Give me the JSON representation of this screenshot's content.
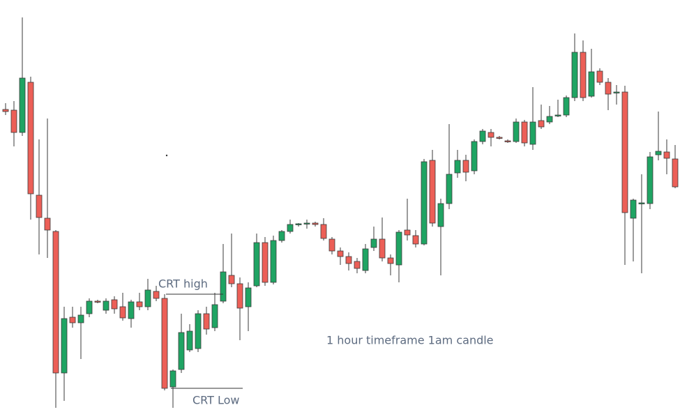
{
  "chart_data": {
    "type": "candlestick",
    "ylim": [
      9,
      600
    ],
    "up_color": "#1fa463",
    "down_color": "#ec5f57",
    "wick_color": "#3a3a3a",
    "series": {
      "open": [
        443,
        442,
        410,
        482,
        320,
        287,
        268,
        65,
        145,
        137,
        150,
        168,
        155,
        170,
        160,
        143,
        167,
        160,
        182,
        172,
        45,
        70,
        98,
        100,
        150,
        130,
        168,
        205,
        193,
        160,
        190,
        252,
        195,
        255,
        268,
        278,
        279,
        280,
        278,
        257,
        240,
        232,
        225,
        212,
        245,
        257,
        230,
        220,
        270,
        262,
        250,
        370,
        275,
        308,
        352,
        370,
        355,
        397,
        410,
        403,
        398,
        397,
        425,
        393,
        427,
        425,
        434,
        435,
        460,
        525,
        462,
        498,
        482,
        467,
        468,
        287,
        308,
        308,
        378,
        382,
        372
      ],
      "high": [
        452,
        455,
        575,
        490,
        400,
        430,
        270,
        160,
        160,
        160,
        172,
        170,
        172,
        175,
        180,
        170,
        180,
        200,
        190,
        178,
        70,
        150,
        135,
        155,
        160,
        180,
        250,
        265,
        202,
        195,
        265,
        260,
        262,
        270,
        285,
        280,
        285,
        282,
        287,
        260,
        245,
        238,
        230,
        250,
        275,
        288,
        235,
        270,
        315,
        270,
        372,
        385,
        315,
        422,
        385,
        378,
        400,
        415,
        415,
        405,
        400,
        430,
        428,
        475,
        450,
        448,
        457,
        463,
        552,
        542,
        530,
        502,
        488,
        478,
        477,
        315,
        350,
        382,
        440,
        400,
        392
      ],
      "low": [
        435,
        390,
        405,
        285,
        235,
        230,
        15,
        25,
        130,
        85,
        145,
        165,
        150,
        150,
        140,
        130,
        155,
        155,
        168,
        40,
        15,
        65,
        95,
        95,
        120,
        125,
        165,
        188,
        112,
        125,
        188,
        190,
        192,
        252,
        265,
        275,
        272,
        275,
        255,
        235,
        220,
        212,
        208,
        208,
        240,
        225,
        205,
        195,
        255,
        245,
        248,
        275,
        205,
        300,
        345,
        340,
        350,
        393,
        390,
        400,
        395,
        395,
        390,
        385,
        415,
        422,
        432,
        432,
        455,
        455,
        460,
        478,
        442,
        450,
        220,
        225,
        208,
        300,
        370,
        350,
        330
      ],
      "close": [
        440,
        410,
        488,
        322,
        288,
        270,
        65,
        143,
        137,
        148,
        168,
        167,
        168,
        157,
        144,
        167,
        160,
        184,
        172,
        43,
        68,
        123,
        125,
        150,
        128,
        163,
        210,
        193,
        158,
        187,
        252,
        195,
        255,
        268,
        278,
        279,
        280,
        278,
        258,
        240,
        232,
        222,
        215,
        243,
        257,
        230,
        222,
        267,
        263,
        250,
        368,
        280,
        308,
        350,
        370,
        353,
        397,
        412,
        403,
        402,
        397,
        425,
        395,
        425,
        418,
        433,
        435,
        460,
        525,
        460,
        497,
        482,
        465,
        468,
        295,
        313,
        309,
        375,
        383,
        373,
        332
      ]
    },
    "annotations": [
      {
        "text": "CRT high",
        "value": 178
      },
      {
        "text": "CRT Low",
        "value": 43
      },
      {
        "text": "1 hour timeframe 1am candle"
      }
    ]
  }
}
